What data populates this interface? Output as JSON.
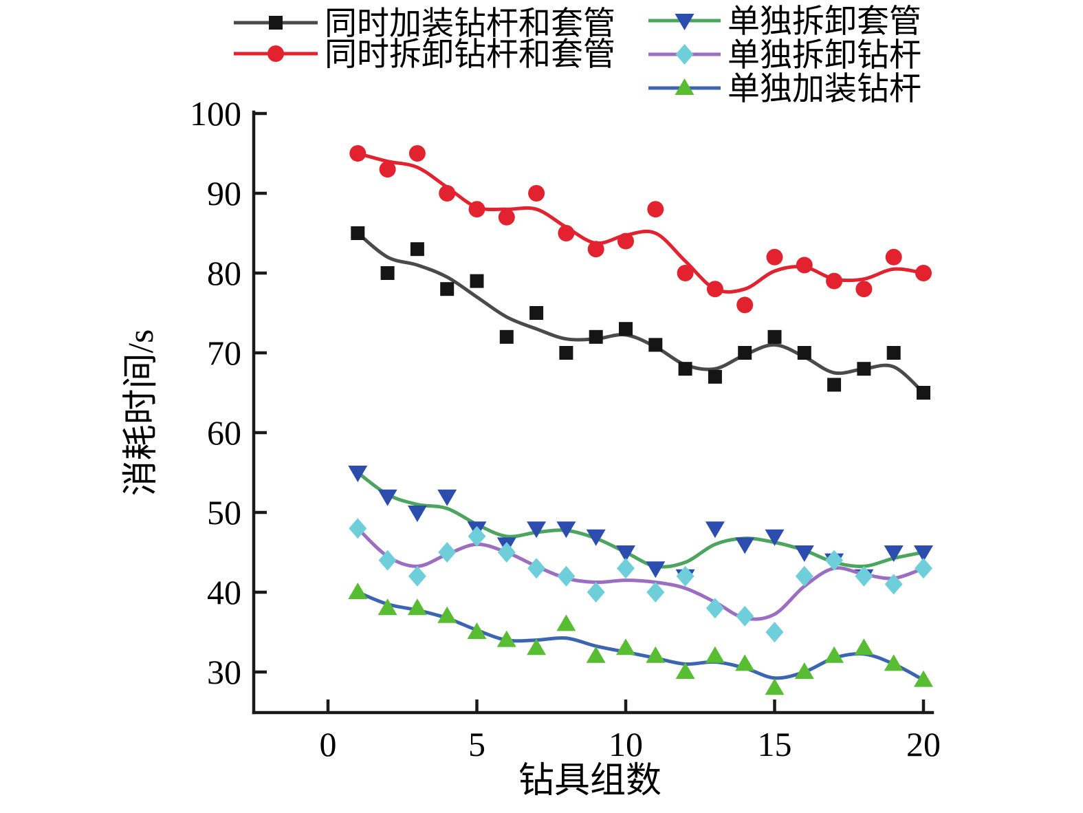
{
  "chart_data": {
    "type": "line",
    "title": "",
    "xlabel": "钻具组数",
    "ylabel": "消耗时间/s",
    "x": [
      1,
      2,
      3,
      4,
      5,
      6,
      7,
      8,
      9,
      10,
      11,
      12,
      13,
      14,
      15,
      16,
      17,
      18,
      19,
      20
    ],
    "series": [
      {
        "name": "同时加装钻杆和套管",
        "line_color": "#4a4a4a",
        "marker": "square",
        "marker_color": "#151515",
        "values": [
          85,
          80,
          83,
          78,
          79,
          72,
          75,
          70,
          72,
          73,
          71,
          68,
          67,
          70,
          72,
          70,
          66,
          68,
          70,
          65
        ]
      },
      {
        "name": "同时拆卸钻杆和套管",
        "line_color": "#e2222e",
        "marker": "circle",
        "marker_color": "#e2222e",
        "values": [
          95,
          93,
          95,
          90,
          88,
          87,
          90,
          85,
          83,
          84,
          88,
          80,
          78,
          76,
          82,
          81,
          79,
          78,
          82,
          80
        ]
      },
      {
        "name": "单独拆卸套管",
        "line_color": "#4da45f",
        "marker": "triangle-down",
        "marker_color": "#2c4dad",
        "values": [
          55,
          52,
          50,
          52,
          48,
          46,
          48,
          48,
          47,
          45,
          43,
          42,
          48,
          46,
          47,
          45,
          44,
          42,
          45,
          45
        ]
      },
      {
        "name": "单独拆卸钻杆",
        "line_color": "#9c6ec2",
        "marker": "diamond",
        "marker_color": "#6ecfda",
        "values": [
          48,
          44,
          42,
          45,
          47,
          45,
          43,
          42,
          40,
          43,
          40,
          42,
          38,
          37,
          35,
          42,
          44,
          42,
          41,
          43
        ]
      },
      {
        "name": "单独加装钻杆",
        "line_color": "#3b65b0",
        "marker": "triangle-up",
        "marker_color": "#58bd32",
        "values": [
          40,
          38,
          38,
          37,
          35,
          34,
          33,
          36,
          32,
          33,
          32,
          30,
          32,
          31,
          28,
          30,
          32,
          33,
          31,
          29
        ]
      }
    ],
    "x_ticks": [
      0,
      5,
      10,
      15,
      20
    ],
    "y_ticks": [
      30,
      40,
      50,
      60,
      70,
      80,
      90,
      100
    ],
    "xlim": [
      -2.5,
      20.3
    ],
    "ylim": [
      25,
      100
    ],
    "grid": false,
    "legend_position": "top",
    "legend_columns": [
      [
        0,
        1
      ],
      [
        2,
        3,
        4
      ]
    ],
    "axis_color": "#1a1a1a",
    "text_color": "#000000"
  }
}
